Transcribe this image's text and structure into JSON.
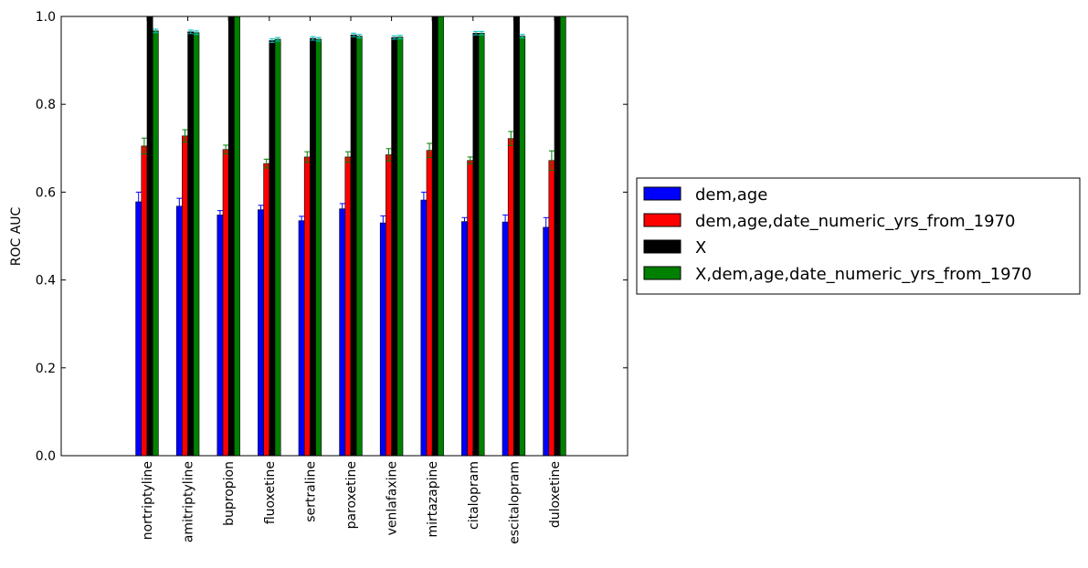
{
  "chart_data": {
    "type": "bar",
    "title": "",
    "xlabel": "",
    "ylabel": "ROC AUC",
    "ylim": [
      0.0,
      1.0
    ],
    "yticks": [
      "0.0",
      "0.2",
      "0.4",
      "0.6",
      "0.8",
      "1.0"
    ],
    "grid": false,
    "legend_position": "right-outside",
    "categories": [
      "nortriptyline",
      "amitriptyline",
      "bupropion",
      "fluoxetine",
      "sertraline",
      "paroxetine",
      "venlafaxine",
      "mirtazapine",
      "citalopram",
      "escitalopram",
      "duloxetine"
    ],
    "series": [
      {
        "name": "dem,age",
        "color": "#0000ff",
        "values": [
          0.578,
          0.568,
          0.548,
          0.56,
          0.535,
          0.562,
          0.53,
          0.582,
          0.533,
          0.532,
          0.52
        ],
        "errors": [
          0.022,
          0.018,
          0.01,
          0.01,
          0.01,
          0.012,
          0.016,
          0.018,
          0.009,
          0.016,
          0.022
        ]
      },
      {
        "name": "dem,age,date_numeric_yrs_from_1970",
        "color": "#ff0000",
        "values": [
          0.705,
          0.728,
          0.697,
          0.665,
          0.68,
          0.68,
          0.685,
          0.695,
          0.672,
          0.722,
          0.672
        ],
        "errors": [
          0.018,
          0.014,
          0.01,
          0.01,
          0.012,
          0.012,
          0.014,
          0.016,
          0.008,
          0.016,
          0.022
        ]
      },
      {
        "name": "X",
        "color": "#000000",
        "values": [
          1.0,
          0.965,
          1.0,
          0.945,
          0.95,
          0.958,
          0.952,
          1.0,
          0.962,
          1.0,
          1.0
        ],
        "errors": [
          0.0,
          0.004,
          0.0,
          0.004,
          0.004,
          0.004,
          0.004,
          0.0,
          0.004,
          0.0,
          0.0
        ]
      },
      {
        "name": "X,dem,age,date_numeric_yrs_from_1970",
        "color": "#008000",
        "values": [
          0.967,
          0.963,
          1.0,
          0.948,
          0.948,
          0.955,
          0.953,
          1.0,
          0.962,
          0.955,
          1.0
        ],
        "errors": [
          0.004,
          0.004,
          0.0,
          0.004,
          0.004,
          0.004,
          0.004,
          0.0,
          0.004,
          0.004,
          0.0
        ]
      }
    ]
  }
}
